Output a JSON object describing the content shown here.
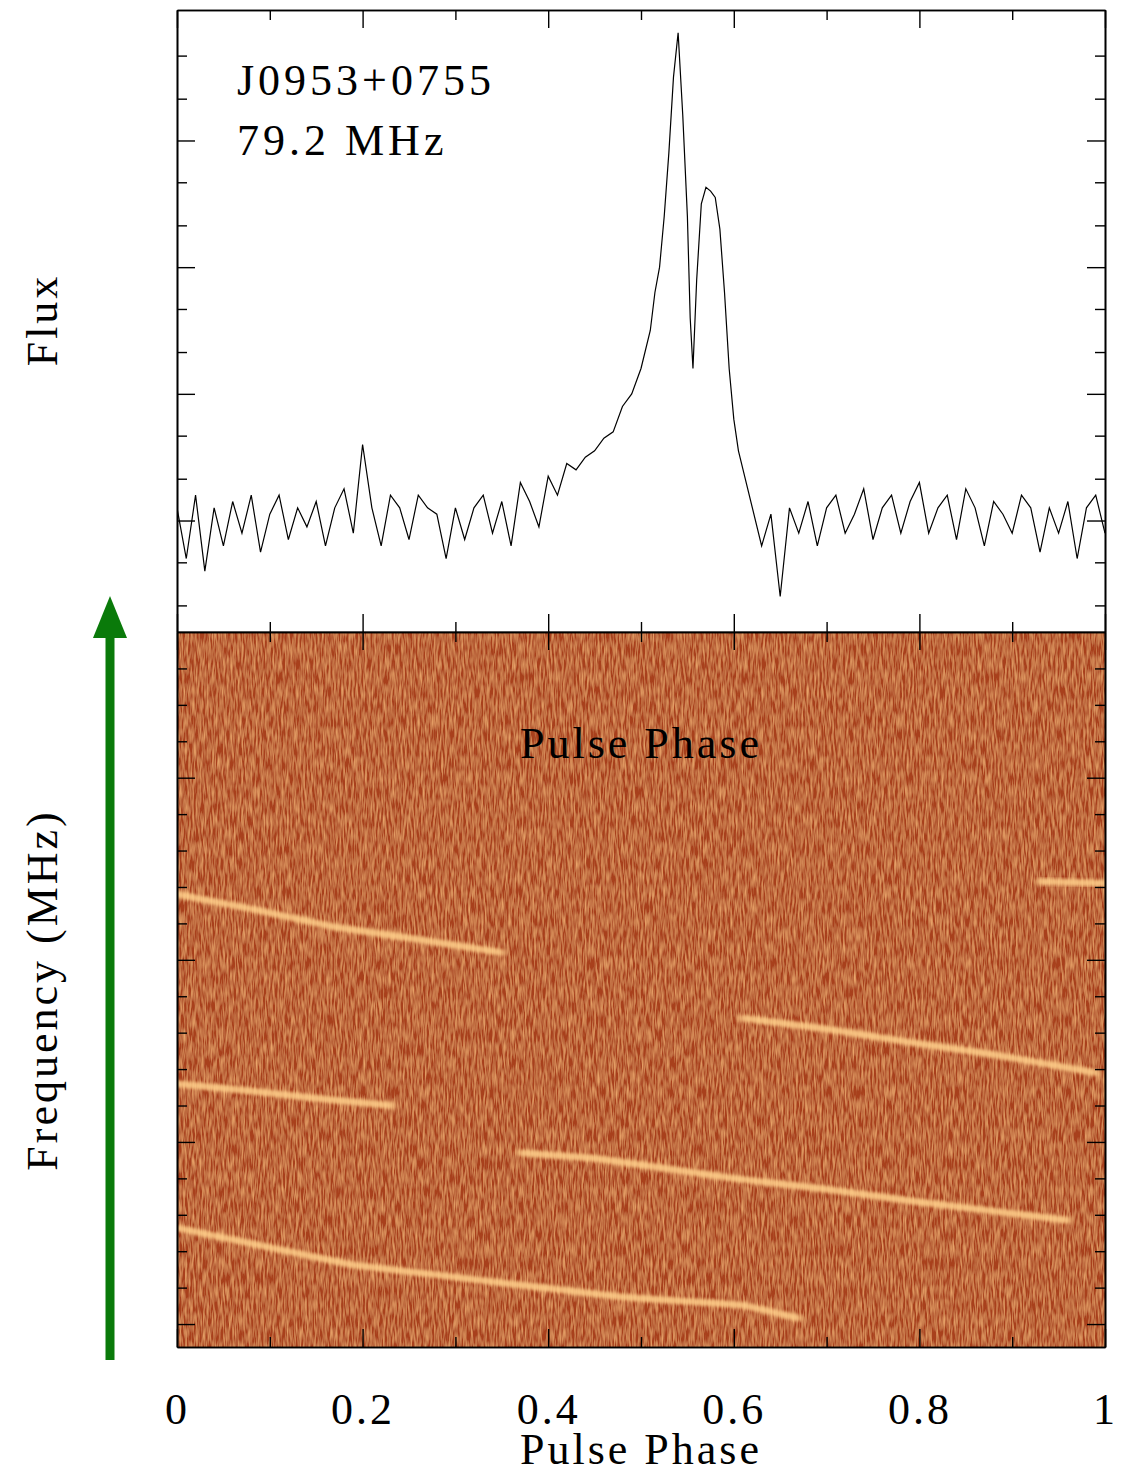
{
  "chart_data": [
    {
      "type": "line",
      "annotations": [
        "J0953+0755",
        "79.2 MHz"
      ],
      "ylabel": "Flux",
      "color": "#000000",
      "x": [
        0,
        0.01,
        0.02,
        0.03,
        0.04,
        0.05,
        0.06,
        0.07,
        0.08,
        0.09,
        0.1,
        0.11,
        0.12,
        0.13,
        0.14,
        0.15,
        0.16,
        0.17,
        0.18,
        0.19,
        0.2,
        0.21,
        0.22,
        0.23,
        0.24,
        0.25,
        0.26,
        0.27,
        0.28,
        0.29,
        0.3,
        0.31,
        0.32,
        0.33,
        0.34,
        0.35,
        0.36,
        0.37,
        0.38,
        0.39,
        0.4,
        0.41,
        0.42,
        0.43,
        0.44,
        0.45,
        0.46,
        0.47,
        0.48,
        0.49,
        0.5,
        0.51,
        0.515,
        0.52,
        0.525,
        0.53,
        0.535,
        0.54,
        0.545,
        0.55,
        0.553,
        0.556,
        0.56,
        0.565,
        0.57,
        0.575,
        0.58,
        0.585,
        0.59,
        0.595,
        0.6,
        0.605,
        0.61,
        0.62,
        0.63,
        0.64,
        0.65,
        0.66,
        0.67,
        0.68,
        0.69,
        0.7,
        0.71,
        0.72,
        0.73,
        0.74,
        0.75,
        0.76,
        0.77,
        0.78,
        0.79,
        0.8,
        0.81,
        0.82,
        0.83,
        0.84,
        0.85,
        0.86,
        0.87,
        0.88,
        0.89,
        0.9,
        0.91,
        0.92,
        0.93,
        0.94,
        0.95,
        0.96,
        0.97,
        0.98,
        0.99,
        1.0
      ],
      "values": [
        0.1,
        -0.3,
        0.2,
        -0.4,
        0.1,
        -0.2,
        0.15,
        -0.1,
        0.2,
        -0.25,
        0.05,
        0.2,
        -0.15,
        0.1,
        -0.05,
        0.15,
        -0.2,
        0.1,
        0.25,
        -0.1,
        0.6,
        0.1,
        -0.2,
        0.2,
        0.1,
        -0.15,
        0.2,
        0.1,
        0.05,
        -0.3,
        0.1,
        -0.15,
        0.1,
        0.2,
        -0.1,
        0.15,
        -0.2,
        0.3,
        0.15,
        -0.05,
        0.35,
        0.2,
        0.45,
        0.4,
        0.5,
        0.55,
        0.65,
        0.7,
        0.9,
        1.0,
        1.2,
        1.5,
        1.8,
        2.0,
        2.4,
        2.9,
        3.5,
        3.85,
        3.2,
        2.4,
        1.6,
        1.2,
        1.9,
        2.5,
        2.63,
        2.6,
        2.55,
        2.3,
        1.8,
        1.2,
        0.8,
        0.55,
        0.4,
        0.1,
        -0.2,
        0.05,
        -0.6,
        0.1,
        -0.1,
        0.15,
        -0.2,
        0.1,
        0.2,
        -0.1,
        0.05,
        0.25,
        -0.15,
        0.1,
        0.2,
        -0.1,
        0.15,
        0.3,
        -0.1,
        0.1,
        0.2,
        -0.15,
        0.25,
        0.1,
        -0.2,
        0.15,
        0.05,
        -0.1,
        0.2,
        0.1,
        -0.25,
        0.1,
        -0.1,
        0.15,
        -0.3,
        0.1,
        0.2,
        -0.1
      ],
      "xlim": [
        0,
        1
      ],
      "xticks": [
        0,
        0.2,
        0.4,
        0.6,
        0.8,
        1
      ],
      "minor_xticks": [
        0.1,
        0.3,
        0.5,
        0.7,
        0.9
      ],
      "ylim": [
        -0.88,
        4.03
      ],
      "yticks": [
        0,
        1,
        2,
        3
      ],
      "minor_yticks": [
        -0.67,
        -0.33,
        0.33,
        0.67,
        1.33,
        1.67,
        2.33,
        2.67,
        3.33,
        3.67
      ],
      "tick_labels": false
    },
    {
      "type": "heatmap",
      "annotations": [
        "Pulse Phase"
      ],
      "xlabel": "Pulse Phase",
      "ylabel": "Frequency (MHz)",
      "color": "#ffcf8a",
      "xlim": [
        0,
        1
      ],
      "xticks": [
        0,
        0.2,
        0.4,
        0.6,
        0.8,
        1
      ],
      "minor_xticks": [
        0.1,
        0.3,
        0.5,
        0.7,
        0.9
      ],
      "ylim": [
        -0.63,
        19.0
      ],
      "yticks": [
        0,
        5,
        10,
        15
      ],
      "minor_yticks": [
        1,
        2,
        3,
        4,
        6,
        7,
        8,
        9,
        11,
        12,
        13,
        14,
        16,
        17,
        18
      ],
      "tick_labels": "x",
      "features": [
        {
          "x": [
            0.0,
            0.08,
            0.17,
            0.25,
            0.35
          ],
          "y": [
            11.8,
            11.4,
            10.9,
            10.6,
            10.2
          ]
        },
        {
          "x": [
            0.93,
            1.0
          ],
          "y": [
            12.15,
            12.1
          ]
        },
        {
          "x": [
            0.61,
            0.7,
            0.8,
            0.88,
            0.99
          ],
          "y": [
            8.4,
            8.1,
            7.7,
            7.4,
            6.9
          ]
        },
        {
          "x": [
            0.0,
            0.08,
            0.15,
            0.23
          ],
          "y": [
            6.6,
            6.4,
            6.2,
            6.0
          ]
        },
        {
          "x": [
            0.37,
            0.45,
            0.52,
            0.6,
            0.7,
            0.8,
            0.88,
            0.96
          ],
          "y": [
            4.7,
            4.55,
            4.3,
            4.0,
            3.7,
            3.35,
            3.1,
            2.85
          ]
        },
        {
          "x": [
            0.0,
            0.19,
            0.28,
            0.37,
            0.48,
            0.61,
            0.67
          ],
          "y": [
            2.64,
            1.62,
            1.35,
            1.07,
            0.74,
            0.52,
            0.16
          ]
        }
      ]
    }
  ]
}
